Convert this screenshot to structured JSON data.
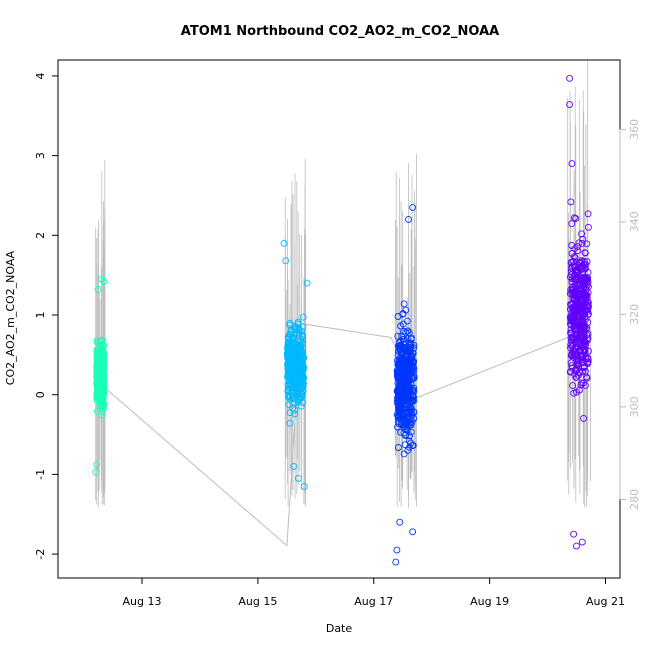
{
  "chart_data": {
    "type": "scatter",
    "title": "ATOM1 Northbound CO2_AO2_m_CO2_NOAA",
    "xlabel": "Date",
    "ylabel": "CO2_AO2_m_CO2_NOAA",
    "x_ticks": [
      "Aug 13",
      "Aug 15",
      "Aug 17",
      "Aug 19",
      "Aug 21"
    ],
    "x_tick_values": [
      13,
      15,
      17,
      19,
      21
    ],
    "xlim": [
      11.55,
      21.25
    ],
    "y_ticks": [
      "-2",
      "-1",
      "0",
      "1",
      "2",
      "3",
      "4"
    ],
    "y_tick_values": [
      -2,
      -1,
      0,
      1,
      2,
      3,
      4
    ],
    "ylim": [
      -2.3,
      4.2
    ],
    "y2_ticks": [
      "280",
      "300",
      "320",
      "340",
      "360"
    ],
    "y2_tick_values": [
      280,
      300,
      320,
      340,
      360
    ],
    "y2lim": [
      263,
      375
    ],
    "grid": false,
    "legend": "none",
    "series": [
      {
        "color": "#1affb8",
        "x_center": 12.28,
        "x_spread": 0.18,
        "y_range": [
          -0.97,
          1.45
        ],
        "outliers": [
          [
            12.2,
            -0.97
          ],
          [
            12.22,
            -0.88
          ],
          [
            12.24,
            1.32
          ],
          [
            12.3,
            1.45
          ],
          [
            12.34,
            1.42
          ]
        ]
      },
      {
        "color": "#00b8ff",
        "x_center": 15.65,
        "x_spread": 0.4,
        "y_range": [
          -1.15,
          1.9
        ],
        "outliers": [
          [
            15.45,
            1.9
          ],
          [
            15.48,
            1.68
          ],
          [
            15.8,
            -1.15
          ],
          [
            15.7,
            -1.05
          ],
          [
            15.62,
            -0.9
          ],
          [
            15.85,
            1.4
          ]
        ]
      },
      {
        "color": "#0036ff",
        "x_center": 17.55,
        "x_spread": 0.42,
        "y_range": [
          -2.1,
          2.35
        ],
        "outliers": [
          [
            17.38,
            -2.1
          ],
          [
            17.4,
            -1.95
          ],
          [
            17.67,
            -1.72
          ],
          [
            17.67,
            2.35
          ],
          [
            17.6,
            2.2
          ],
          [
            17.45,
            -1.6
          ]
        ]
      },
      {
        "color": "#6100ff",
        "x_center": 20.55,
        "x_spread": 0.45,
        "y_range": [
          -1.9,
          3.97
        ],
        "outliers": [
          [
            20.38,
            3.97
          ],
          [
            20.38,
            3.64
          ],
          [
            20.42,
            2.9
          ],
          [
            20.4,
            2.42
          ],
          [
            20.7,
            2.27
          ],
          [
            20.5,
            -1.9
          ],
          [
            20.45,
            -1.75
          ],
          [
            20.6,
            -1.85
          ]
        ]
      }
    ],
    "secondary_line": {
      "color": "#bdbdbd",
      "axis": "right",
      "points": [
        [
          12.28,
          305
        ],
        [
          15.5,
          270
        ],
        [
          15.75,
          318
        ],
        [
          17.3,
          315
        ],
        [
          17.75,
          302
        ],
        [
          20.55,
          316
        ]
      ]
    }
  }
}
